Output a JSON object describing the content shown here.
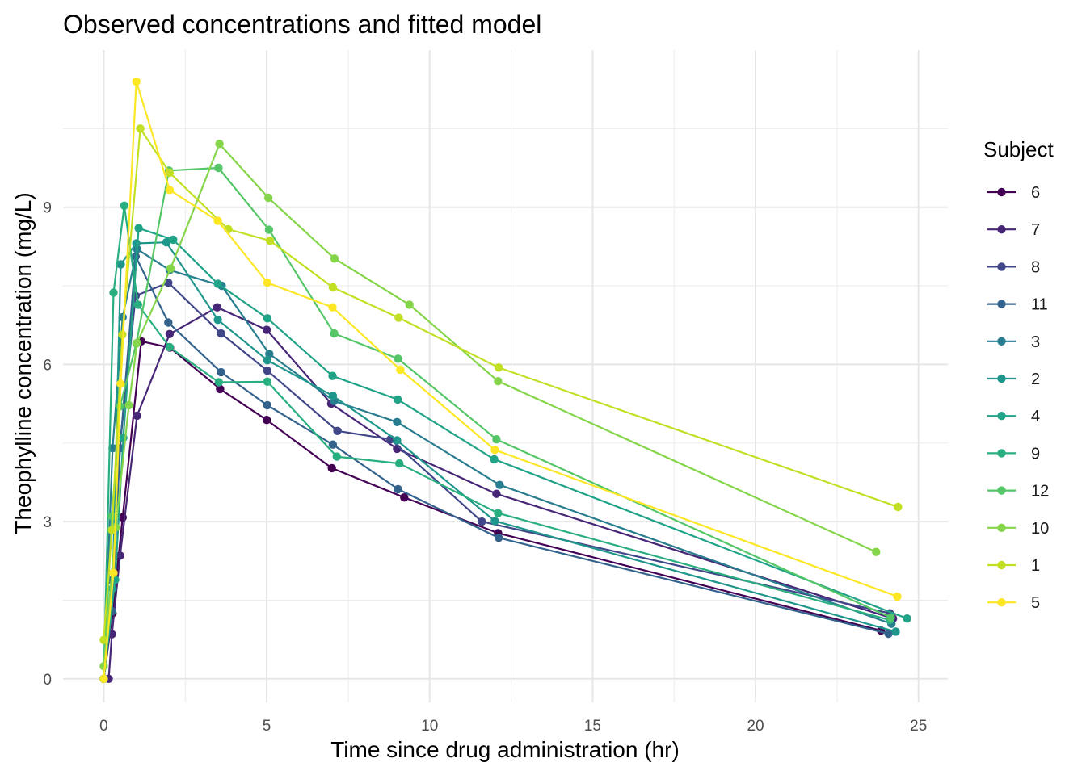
{
  "chart_data": {
    "type": "line",
    "title": "Observed concentrations and fitted model",
    "xlabel": "Time since drug administration (hr)",
    "ylabel": "Theophylline concentration (mg/L)",
    "xlim": [
      -1.25,
      25.9
    ],
    "ylim": [
      -0.45,
      12.0
    ],
    "x_ticks": [
      0,
      5,
      10,
      15,
      20,
      25
    ],
    "y_ticks": [
      0,
      3,
      6,
      9
    ],
    "grid": true,
    "legend": {
      "title": "Subject",
      "position": "right"
    },
    "series": [
      {
        "name": "6",
        "color": "#440154",
        "x": [
          0,
          0.27,
          0.58,
          1.15,
          2.03,
          3.57,
          5.0,
          7.0,
          9.22,
          12.1,
          23.85
        ],
        "y": [
          0,
          1.25,
          3.08,
          6.44,
          6.32,
          5.53,
          4.94,
          4.02,
          3.46,
          2.78,
          0.92
        ]
      },
      {
        "name": "7",
        "color": "#482677",
        "x": [
          0.15,
          0.25,
          0.5,
          1.02,
          2.02,
          3.48,
          5.0,
          6.98,
          9.0,
          12.05,
          24.22
        ],
        "y": [
          0,
          0.85,
          2.35,
          5.02,
          6.58,
          7.09,
          6.66,
          5.25,
          4.39,
          3.53,
          1.15
        ]
      },
      {
        "name": "8",
        "color": "#404688",
        "x": [
          0,
          0.25,
          0.52,
          0.98,
          1.98,
          3.6,
          5.02,
          7.17,
          8.8,
          11.6,
          24.12
        ],
        "y": [
          0,
          1.88,
          4.6,
          7.31,
          7.56,
          6.59,
          5.88,
          4.73,
          4.57,
          3.0,
          1.25
        ]
      },
      {
        "name": "11",
        "color": "#33638d",
        "x": [
          0,
          0.25,
          0.5,
          0.98,
          1.98,
          3.6,
          5.02,
          7.03,
          9.03,
          12.12,
          24.08
        ],
        "y": [
          0,
          1.29,
          4.4,
          8.06,
          6.8,
          5.85,
          5.22,
          4.47,
          3.62,
          2.69,
          0.86
        ]
      },
      {
        "name": "3",
        "color": "#287d8e",
        "x": [
          0,
          0.27,
          0.58,
          1.02,
          2.02,
          3.62,
          5.08,
          7.07,
          9.0,
          12.15,
          24.17
        ],
        "y": [
          0,
          4.4,
          6.9,
          8.2,
          7.8,
          7.5,
          6.2,
          5.3,
          4.9,
          3.7,
          1.05
        ]
      },
      {
        "name": "2",
        "color": "#1f968b",
        "x": [
          0,
          0.27,
          0.52,
          1.0,
          1.92,
          3.5,
          5.02,
          7.03,
          9.0,
          12.0,
          24.3
        ],
        "y": [
          0,
          1.72,
          7.91,
          8.31,
          8.33,
          6.85,
          6.08,
          5.4,
          4.55,
          3.01,
          0.9
        ]
      },
      {
        "name": "4",
        "color": "#20a386",
        "x": [
          0,
          0.35,
          0.6,
          1.07,
          2.13,
          3.5,
          5.02,
          7.02,
          9.02,
          11.98,
          24.65
        ],
        "y": [
          0,
          1.89,
          4.6,
          8.6,
          8.38,
          7.54,
          6.88,
          5.78,
          5.33,
          4.19,
          1.15
        ]
      },
      {
        "name": "9",
        "color": "#29af7f",
        "x": [
          0,
          0.3,
          0.63,
          1.05,
          2.02,
          3.53,
          5.02,
          7.15,
          9.07,
          12.1,
          24.12
        ],
        "y": [
          0,
          7.37,
          9.03,
          7.14,
          6.33,
          5.66,
          5.67,
          4.24,
          4.11,
          3.16,
          1.12
        ]
      },
      {
        "name": "12",
        "color": "#55c667",
        "x": [
          0,
          0.25,
          0.5,
          1.0,
          2.0,
          3.52,
          5.07,
          7.07,
          9.03,
          12.05,
          24.15
        ],
        "y": [
          0,
          3.1,
          5.2,
          6.4,
          9.7,
          9.75,
          8.57,
          6.59,
          6.11,
          4.57,
          1.17
        ]
      },
      {
        "name": "10",
        "color": "#85d54a",
        "x": [
          0,
          0.37,
          0.77,
          1.02,
          2.05,
          3.55,
          5.05,
          7.08,
          9.38,
          12.1,
          23.7
        ],
        "y": [
          0.24,
          2.89,
          5.22,
          6.41,
          7.83,
          10.21,
          9.18,
          8.02,
          7.14,
          5.68,
          2.42
        ]
      },
      {
        "name": "1",
        "color": "#c2df23",
        "x": [
          0,
          0.25,
          0.57,
          1.12,
          2.02,
          3.82,
          5.1,
          7.03,
          9.05,
          12.12,
          24.37
        ],
        "y": [
          0.74,
          2.84,
          6.57,
          10.5,
          9.66,
          8.58,
          8.36,
          7.47,
          6.89,
          5.94,
          3.28
        ]
      },
      {
        "name": "5",
        "color": "#fde725",
        "x": [
          0,
          0.3,
          0.52,
          1.0,
          2.02,
          3.5,
          5.02,
          7.02,
          9.1,
          12.0,
          24.35
        ],
        "y": [
          0,
          2.02,
          5.63,
          11.4,
          9.33,
          8.74,
          7.56,
          7.09,
          5.9,
          4.37,
          1.57
        ]
      }
    ]
  }
}
